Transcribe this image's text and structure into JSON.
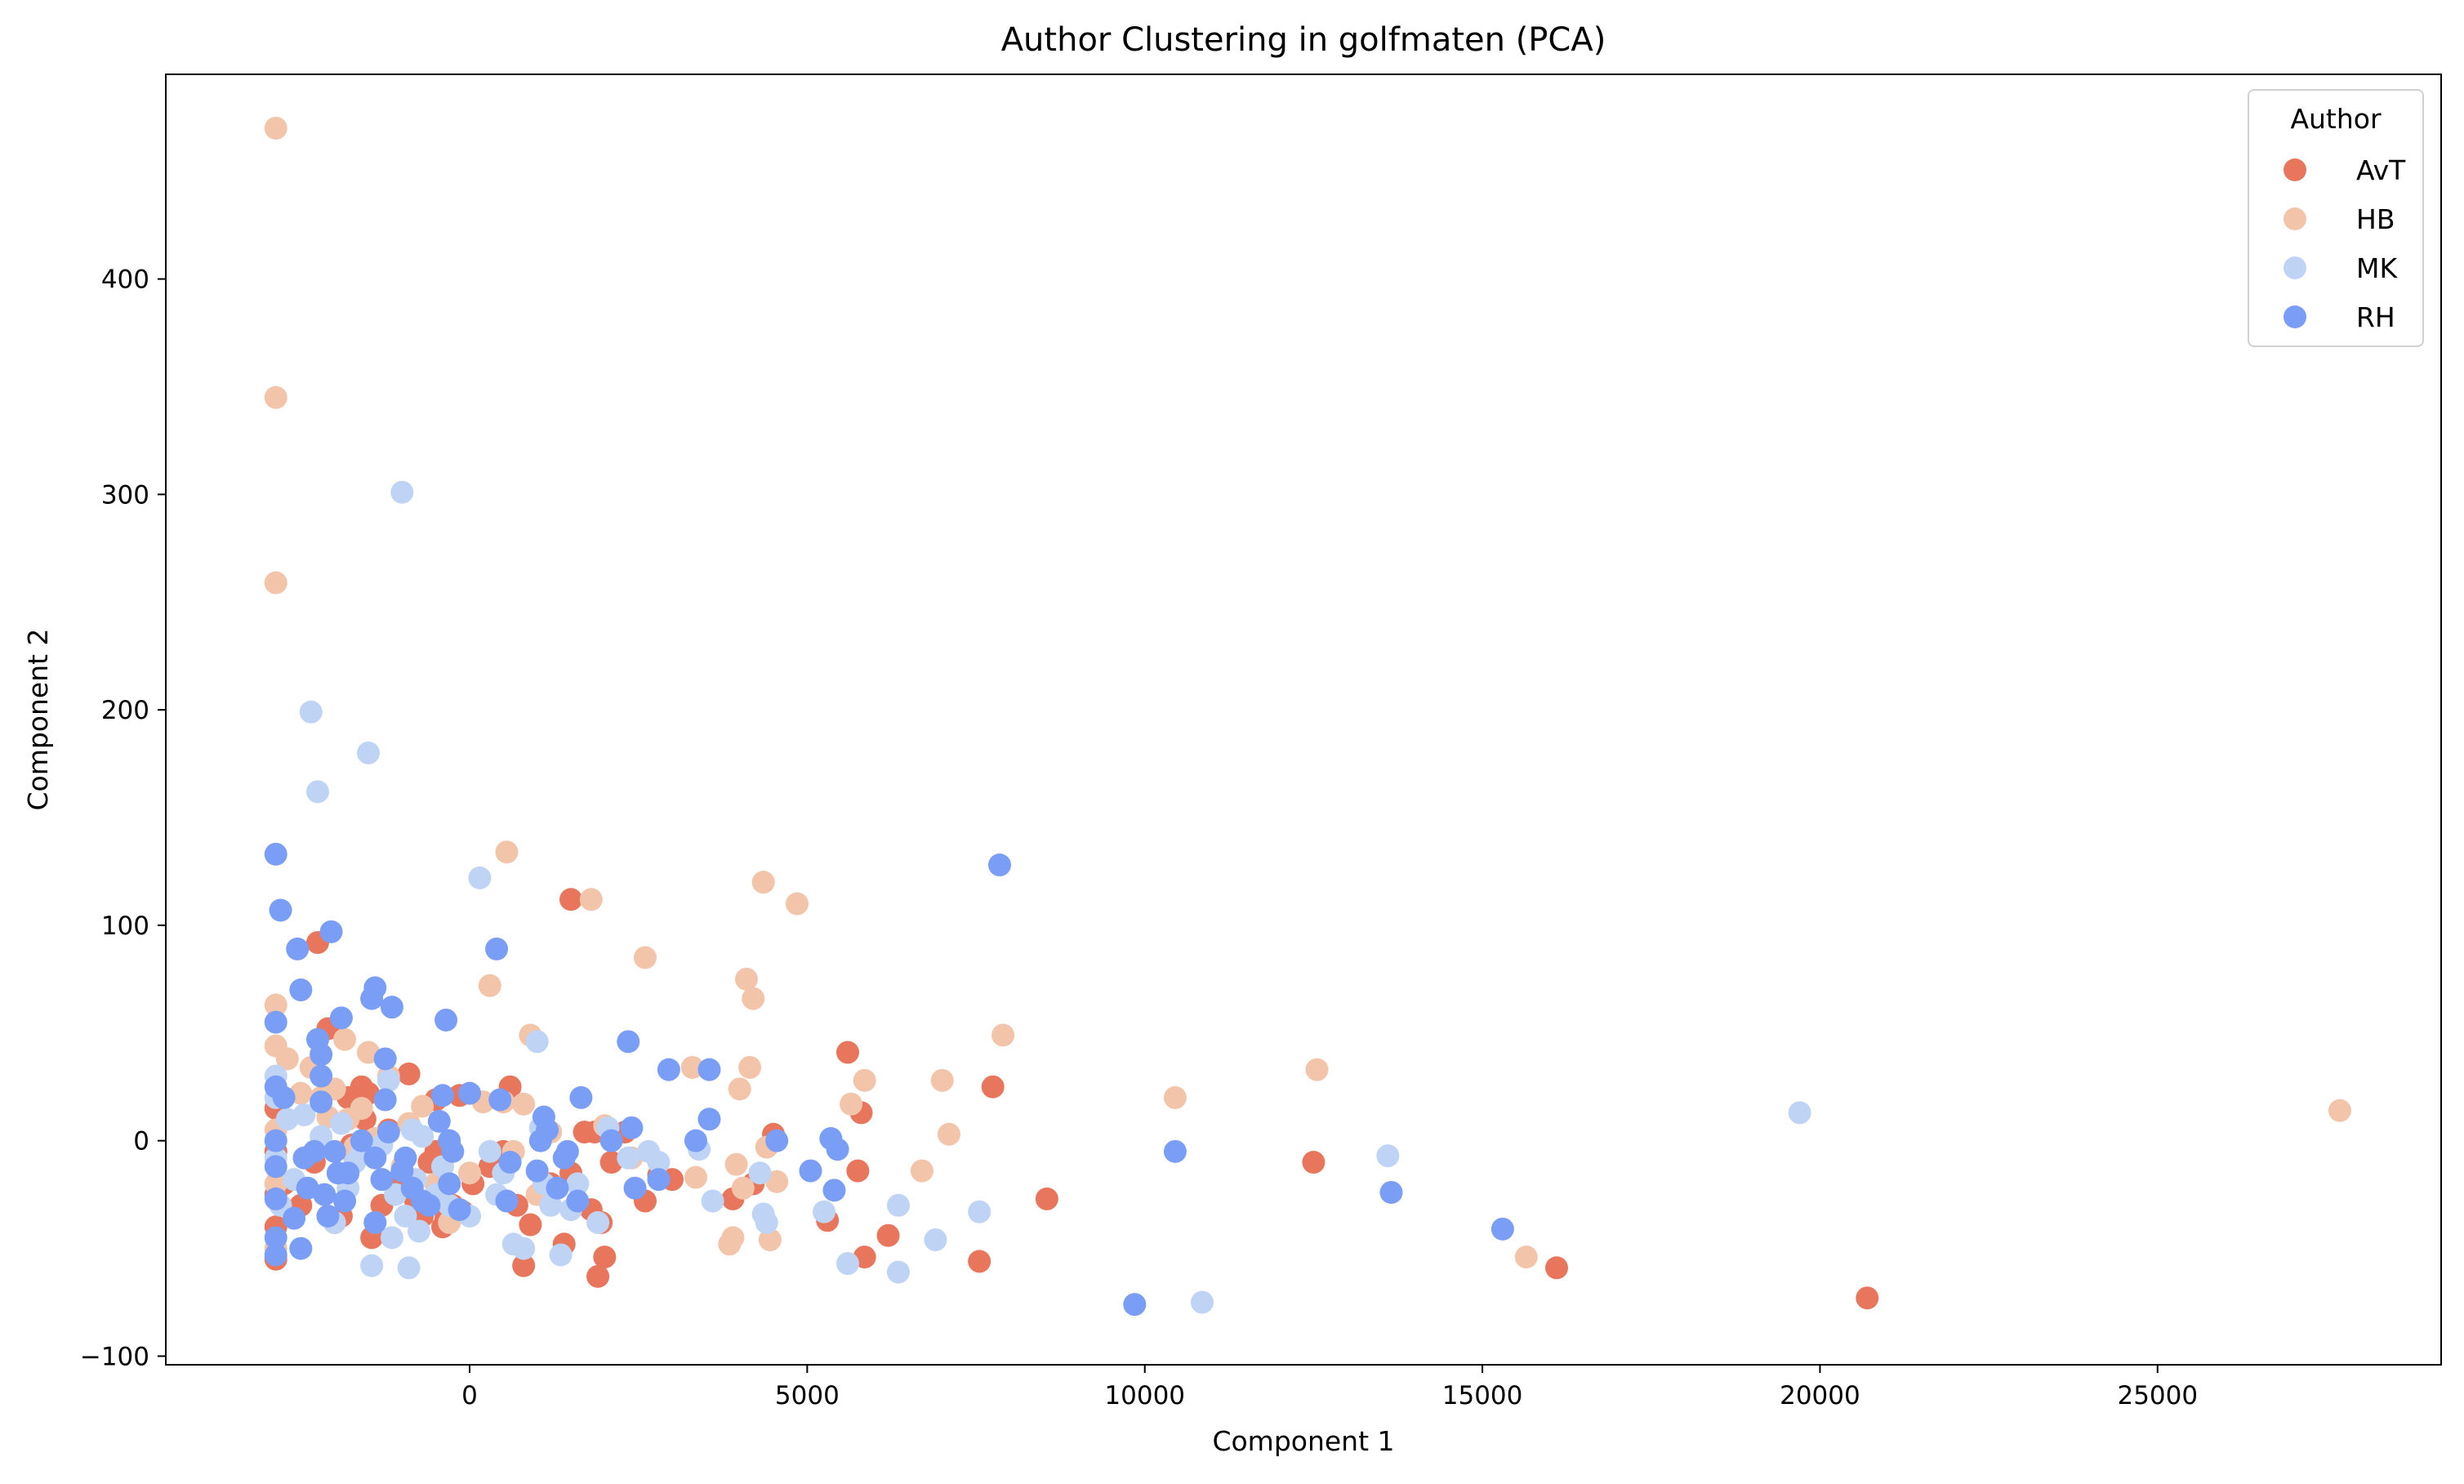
{
  "chart_data": {
    "type": "scatter",
    "title": "Author Clustering in golfmaten (PCA)",
    "xlabel": "Component 1",
    "ylabel": "Component 2",
    "xlim": [
      -4500,
      29200
    ],
    "ylim": [
      -104,
      495
    ],
    "xticks": [
      0,
      5000,
      10000,
      15000,
      20000,
      25000
    ],
    "yticks": [
      -100,
      0,
      100,
      200,
      300,
      400
    ],
    "grid": false,
    "legend": {
      "title": "Author",
      "position": "top-right"
    },
    "series": [
      {
        "name": "AvT",
        "color": "#e8765c",
        "points": [
          [
            -2870,
            15
          ],
          [
            -2870,
            -5
          ],
          [
            -2870,
            -25
          ],
          [
            -2870,
            -40
          ],
          [
            -2870,
            -55
          ],
          [
            -2750,
            -20
          ],
          [
            -2500,
            -30
          ],
          [
            -2300,
            -10
          ],
          [
            -2250,
            92
          ],
          [
            -2100,
            52
          ],
          [
            -2000,
            -38
          ],
          [
            -1900,
            -35
          ],
          [
            -1800,
            20
          ],
          [
            -1750,
            -2
          ],
          [
            -1700,
            -8
          ],
          [
            -1600,
            25
          ],
          [
            -1550,
            10
          ],
          [
            -1500,
            22
          ],
          [
            -1450,
            -45
          ],
          [
            -1300,
            -30
          ],
          [
            -1200,
            5
          ],
          [
            -1100,
            -20
          ],
          [
            -1000,
            -15
          ],
          [
            -900,
            31
          ],
          [
            -800,
            -28
          ],
          [
            -700,
            -35
          ],
          [
            -600,
            -10
          ],
          [
            -500,
            -5
          ],
          [
            -500,
            19
          ],
          [
            -400,
            -40
          ],
          [
            -350,
            -36
          ],
          [
            -250,
            -30
          ],
          [
            -150,
            21
          ],
          [
            -100,
            -33
          ],
          [
            50,
            -20
          ],
          [
            300,
            -12
          ],
          [
            500,
            -5
          ],
          [
            600,
            25
          ],
          [
            700,
            -30
          ],
          [
            800,
            -58
          ],
          [
            900,
            -39
          ],
          [
            1200,
            -20
          ],
          [
            1400,
            -48
          ],
          [
            1500,
            -15
          ],
          [
            1500,
            112
          ],
          [
            1700,
            4
          ],
          [
            1800,
            -32
          ],
          [
            1850,
            4
          ],
          [
            1900,
            -63
          ],
          [
            1950,
            -38
          ],
          [
            2000,
            -54
          ],
          [
            2100,
            -10
          ],
          [
            2300,
            4
          ],
          [
            2600,
            -28
          ],
          [
            2800,
            -16
          ],
          [
            3000,
            -18
          ],
          [
            3900,
            -27
          ],
          [
            4200,
            -20
          ],
          [
            4500,
            3
          ],
          [
            5300,
            -37
          ],
          [
            5600,
            41
          ],
          [
            5750,
            -14
          ],
          [
            5800,
            13
          ],
          [
            5850,
            -54
          ],
          [
            6200,
            -44
          ],
          [
            7550,
            -56
          ],
          [
            7750,
            25
          ],
          [
            8550,
            -27
          ],
          [
            12500,
            -10
          ],
          [
            16100,
            -59
          ],
          [
            20700,
            -73
          ]
        ]
      },
      {
        "name": "HB",
        "color": "#f2c4aa",
        "points": [
          [
            -2870,
            470
          ],
          [
            -2870,
            345
          ],
          [
            -2870,
            259
          ],
          [
            -2870,
            63
          ],
          [
            -2870,
            44
          ],
          [
            -2870,
            5
          ],
          [
            -2870,
            -20
          ],
          [
            -2870,
            -50
          ],
          [
            -2700,
            38
          ],
          [
            -2500,
            22
          ],
          [
            -2350,
            34
          ],
          [
            -2200,
            20
          ],
          [
            -2100,
            11
          ],
          [
            -2000,
            24
          ],
          [
            -1850,
            47
          ],
          [
            -1800,
            10
          ],
          [
            -1700,
            -3
          ],
          [
            -1600,
            15
          ],
          [
            -1500,
            41
          ],
          [
            -1400,
            1
          ],
          [
            -1200,
            30
          ],
          [
            -1000,
            -12
          ],
          [
            -900,
            8
          ],
          [
            -700,
            16
          ],
          [
            -500,
            -20
          ],
          [
            -300,
            -38
          ],
          [
            0,
            -15
          ],
          [
            200,
            18
          ],
          [
            300,
            72
          ],
          [
            500,
            18
          ],
          [
            550,
            134
          ],
          [
            650,
            -5
          ],
          [
            800,
            17
          ],
          [
            900,
            49
          ],
          [
            1000,
            -25
          ],
          [
            1200,
            4
          ],
          [
            1800,
            112
          ],
          [
            2000,
            7
          ],
          [
            2400,
            -8
          ],
          [
            2600,
            85
          ],
          [
            3300,
            34
          ],
          [
            3350,
            -17
          ],
          [
            3850,
            -48
          ],
          [
            3900,
            -45
          ],
          [
            3950,
            -11
          ],
          [
            4000,
            24
          ],
          [
            4050,
            -22
          ],
          [
            4100,
            75
          ],
          [
            4150,
            34
          ],
          [
            4200,
            66
          ],
          [
            4350,
            120
          ],
          [
            4400,
            -3
          ],
          [
            4450,
            -46
          ],
          [
            4550,
            -19
          ],
          [
            4850,
            110
          ],
          [
            5650,
            17
          ],
          [
            5850,
            28
          ],
          [
            6700,
            -14
          ],
          [
            7000,
            28
          ],
          [
            7100,
            3
          ],
          [
            7900,
            49
          ],
          [
            10450,
            20
          ],
          [
            12550,
            33
          ],
          [
            15650,
            -54
          ],
          [
            27700,
            14
          ]
        ]
      },
      {
        "name": "MK",
        "color": "#bfd3f5",
        "points": [
          [
            -2870,
            20
          ],
          [
            -2870,
            30
          ],
          [
            -2870,
            -8
          ],
          [
            -2800,
            -30
          ],
          [
            -2700,
            10
          ],
          [
            -2600,
            -18
          ],
          [
            -2450,
            12
          ],
          [
            -2350,
            199
          ],
          [
            -2250,
            162
          ],
          [
            -2200,
            2
          ],
          [
            -2000,
            -38
          ],
          [
            -1900,
            8
          ],
          [
            -1800,
            -22
          ],
          [
            -1700,
            -10
          ],
          [
            -1600,
            -5
          ],
          [
            -1500,
            180
          ],
          [
            -1450,
            -58
          ],
          [
            -1400,
            -38
          ],
          [
            -1300,
            -2
          ],
          [
            -1200,
            28
          ],
          [
            -1150,
            -45
          ],
          [
            -1100,
            -25
          ],
          [
            -1000,
            301
          ],
          [
            -950,
            -35
          ],
          [
            -900,
            -59
          ],
          [
            -850,
            5
          ],
          [
            -800,
            -18
          ],
          [
            -750,
            -42
          ],
          [
            -700,
            2
          ],
          [
            -500,
            -25
          ],
          [
            -400,
            -12
          ],
          [
            -300,
            -30
          ],
          [
            0,
            -35
          ],
          [
            150,
            122
          ],
          [
            300,
            -5
          ],
          [
            400,
            -25
          ],
          [
            500,
            -15
          ],
          [
            650,
            -48
          ],
          [
            800,
            -50
          ],
          [
            1000,
            46
          ],
          [
            1050,
            6
          ],
          [
            1100,
            -20
          ],
          [
            1200,
            -30
          ],
          [
            1350,
            -53
          ],
          [
            1500,
            -32
          ],
          [
            1600,
            -20
          ],
          [
            1900,
            -38
          ],
          [
            2050,
            6
          ],
          [
            2350,
            -8
          ],
          [
            2650,
            -5
          ],
          [
            2800,
            -10
          ],
          [
            3400,
            -4
          ],
          [
            3600,
            -28
          ],
          [
            4300,
            -15
          ],
          [
            4350,
            -34
          ],
          [
            4400,
            -38
          ],
          [
            5250,
            -33
          ],
          [
            5600,
            -57
          ],
          [
            6350,
            -30
          ],
          [
            6350,
            -61
          ],
          [
            6900,
            -46
          ],
          [
            7550,
            -33
          ],
          [
            10850,
            -75
          ],
          [
            13600,
            -7
          ],
          [
            19700,
            13
          ]
        ]
      },
      {
        "name": "RH",
        "color": "#7a9ef5",
        "points": [
          [
            -2870,
            133
          ],
          [
            -2870,
            55
          ],
          [
            -2870,
            25
          ],
          [
            -2870,
            0
          ],
          [
            -2870,
            -12
          ],
          [
            -2870,
            -27
          ],
          [
            -2870,
            -45
          ],
          [
            -2870,
            -53
          ],
          [
            -2800,
            107
          ],
          [
            -2750,
            20
          ],
          [
            -2600,
            -36
          ],
          [
            -2550,
            89
          ],
          [
            -2500,
            70
          ],
          [
            -2500,
            -50
          ],
          [
            -2450,
            -8
          ],
          [
            -2400,
            -22
          ],
          [
            -2300,
            -5
          ],
          [
            -2250,
            47
          ],
          [
            -2200,
            40
          ],
          [
            -2200,
            30
          ],
          [
            -2200,
            18
          ],
          [
            -2150,
            -25
          ],
          [
            -2100,
            -35
          ],
          [
            -2050,
            97
          ],
          [
            -2000,
            -5
          ],
          [
            -1950,
            -15
          ],
          [
            -1900,
            57
          ],
          [
            -1850,
            -28
          ],
          [
            -1800,
            -15
          ],
          [
            -1600,
            0
          ],
          [
            -1450,
            66
          ],
          [
            -1400,
            71
          ],
          [
            -1400,
            -8
          ],
          [
            -1400,
            -38
          ],
          [
            -1300,
            -18
          ],
          [
            -1250,
            38
          ],
          [
            -1250,
            19
          ],
          [
            -1200,
            4
          ],
          [
            -1150,
            62
          ],
          [
            -1000,
            -14
          ],
          [
            -950,
            -8
          ],
          [
            -850,
            -22
          ],
          [
            -700,
            -28
          ],
          [
            -600,
            -30
          ],
          [
            -450,
            9
          ],
          [
            -400,
            21
          ],
          [
            -350,
            56
          ],
          [
            -300,
            0
          ],
          [
            -300,
            -20
          ],
          [
            -250,
            -5
          ],
          [
            -150,
            -32
          ],
          [
            0,
            22
          ],
          [
            400,
            89
          ],
          [
            450,
            19
          ],
          [
            550,
            -28
          ],
          [
            600,
            -10
          ],
          [
            1000,
            -14
          ],
          [
            1050,
            0
          ],
          [
            1100,
            11
          ],
          [
            1150,
            5
          ],
          [
            1300,
            -22
          ],
          [
            1400,
            -8
          ],
          [
            1450,
            -5
          ],
          [
            1600,
            -28
          ],
          [
            1650,
            20
          ],
          [
            2100,
            0
          ],
          [
            2350,
            46
          ],
          [
            2400,
            6
          ],
          [
            2450,
            -22
          ],
          [
            2800,
            -18
          ],
          [
            2950,
            33
          ],
          [
            3350,
            0
          ],
          [
            3550,
            33
          ],
          [
            3550,
            10
          ],
          [
            4550,
            0
          ],
          [
            5050,
            -14
          ],
          [
            5350,
            1
          ],
          [
            5400,
            -23
          ],
          [
            5450,
            -4
          ],
          [
            7850,
            128
          ],
          [
            9850,
            -76
          ],
          [
            10450,
            -5
          ],
          [
            13650,
            -24
          ],
          [
            15300,
            -41
          ]
        ]
      }
    ]
  }
}
